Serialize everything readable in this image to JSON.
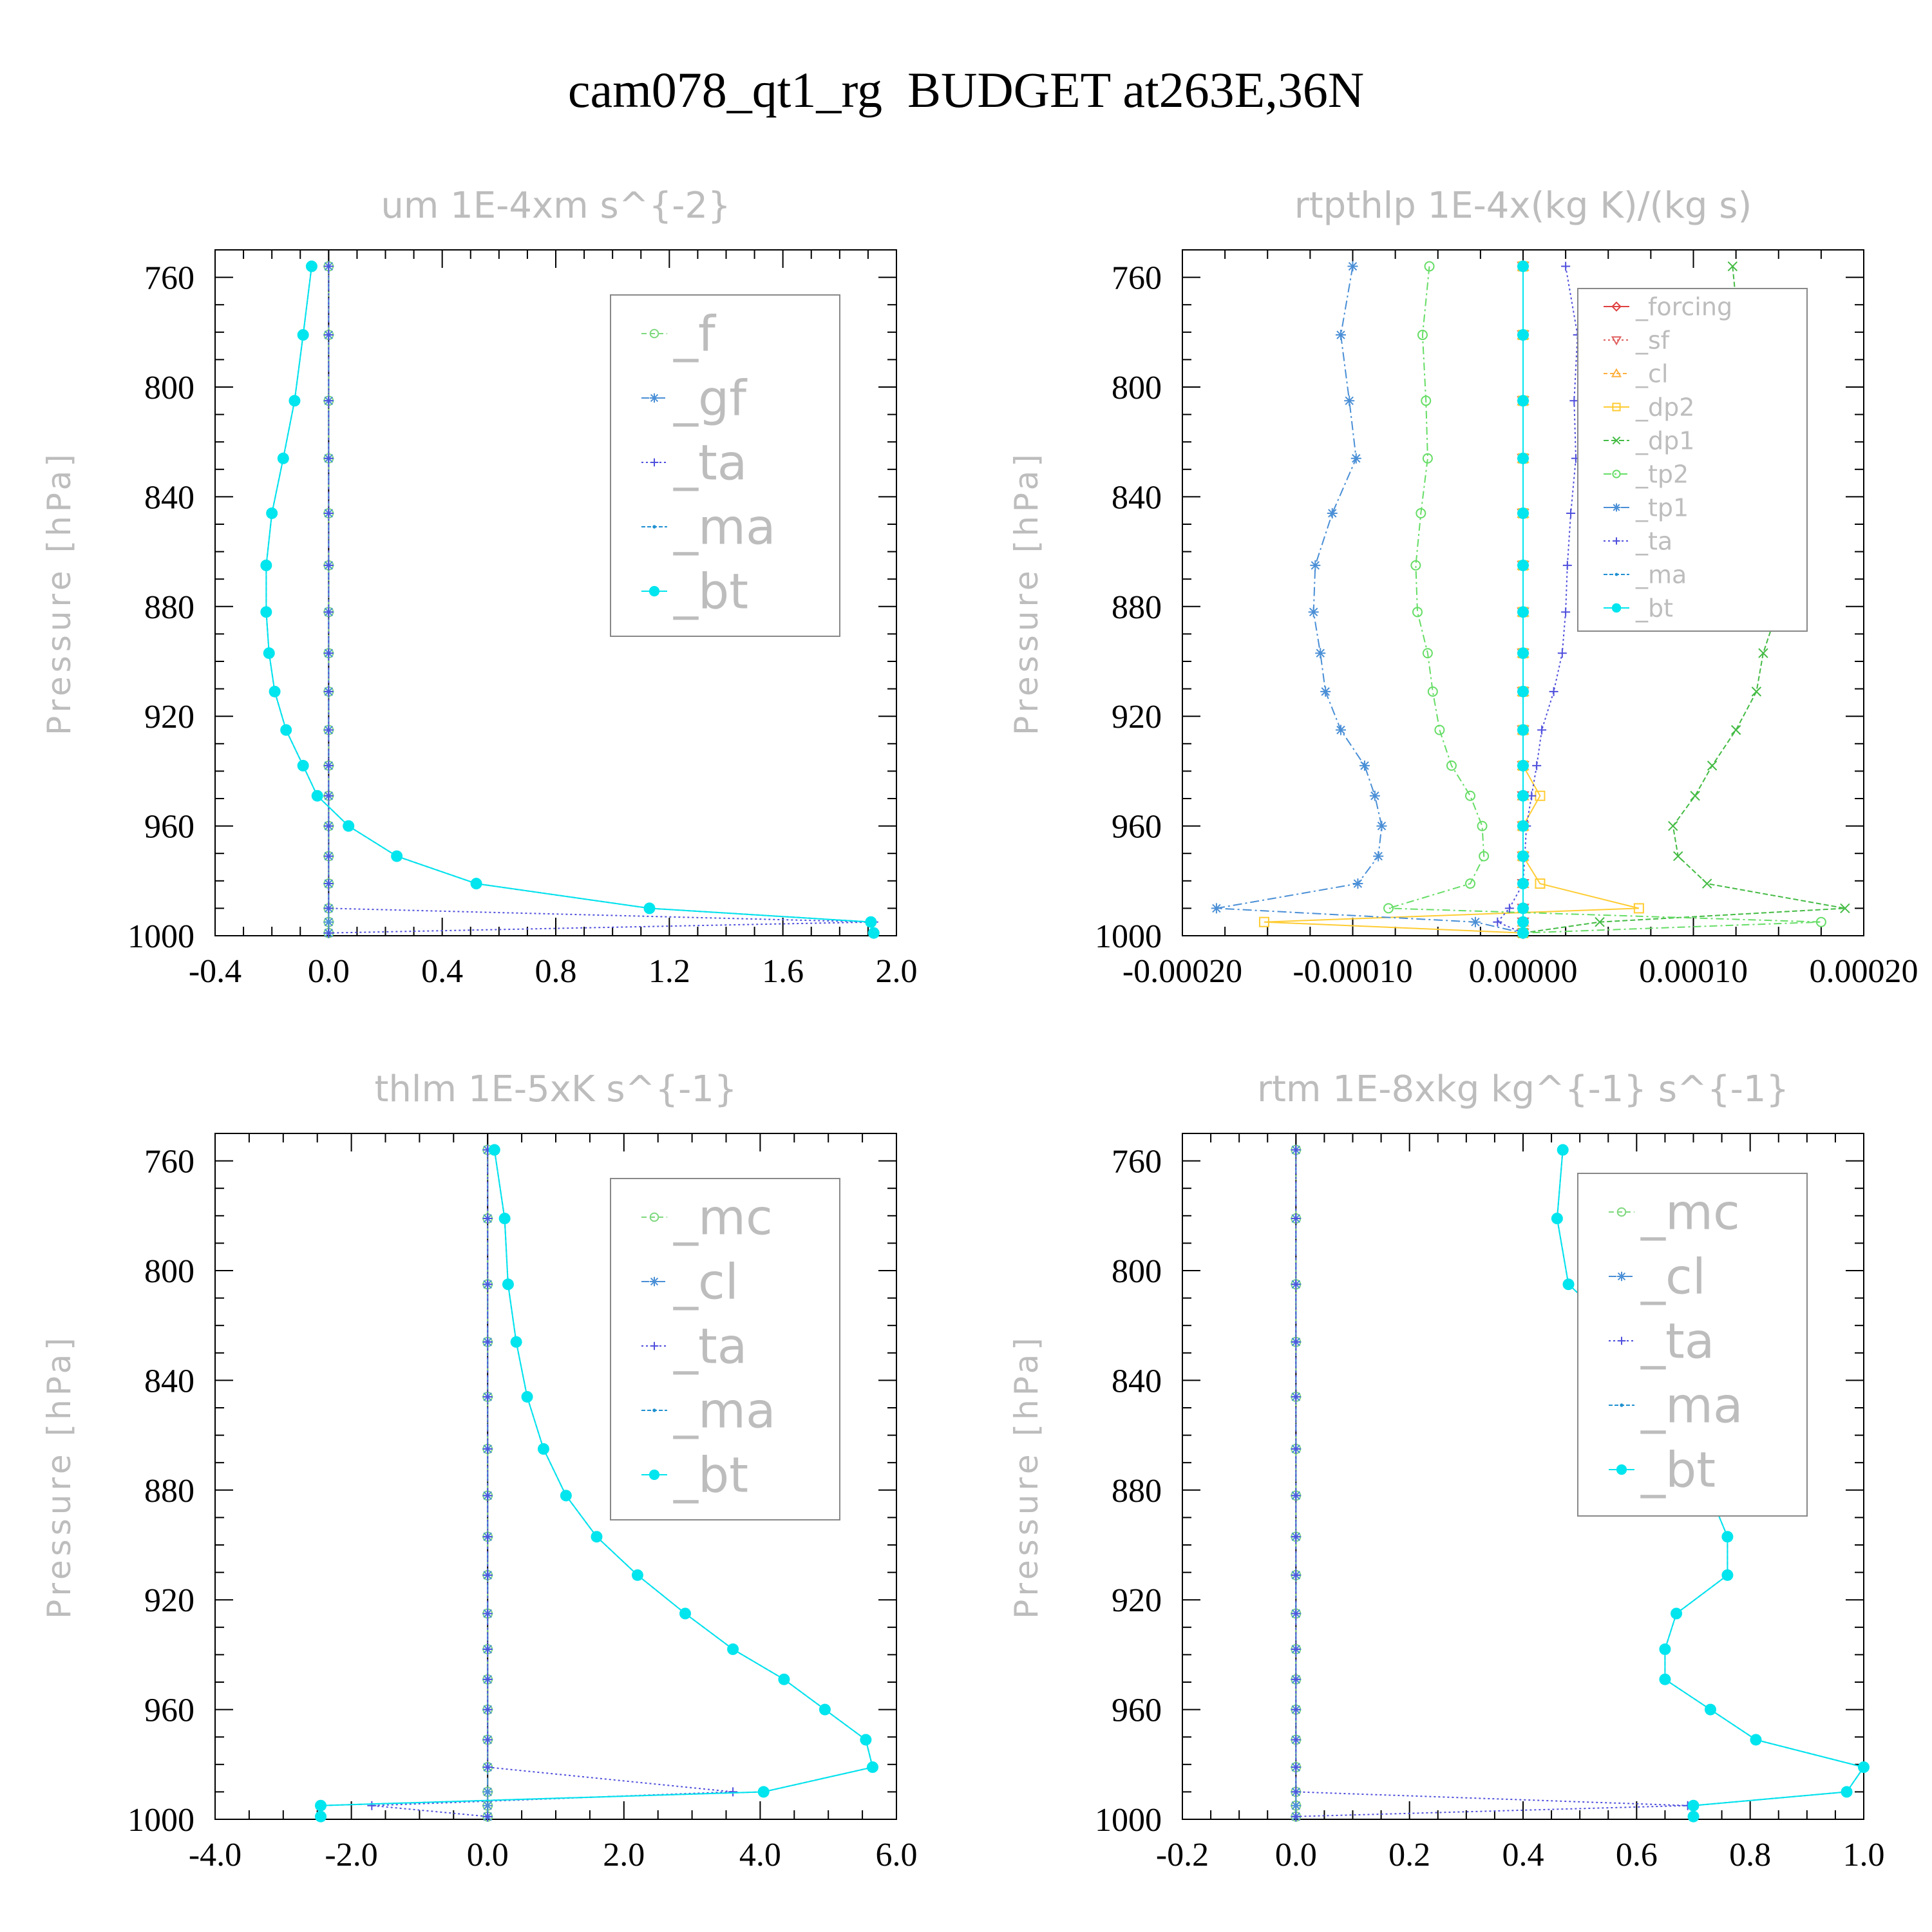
{
  "title": "cam078_qt1_rg  BUDGET at263E,36N",
  "chart_data": [
    {
      "type": "line",
      "title": "um   1E-4xm s^{-2}",
      "ylabel": "Pressure [hPa]",
      "xlabel": "",
      "xlim": [
        -0.4,
        2.0
      ],
      "ylim": [
        1000,
        750
      ],
      "x_ticks": [
        "-0.4",
        "0.0",
        "0.4",
        "0.8",
        "1.2",
        "1.6",
        "2.0"
      ],
      "y_ticks": [
        "760",
        "800",
        "840",
        "880",
        "920",
        "960",
        "1000"
      ],
      "legend": "top-right",
      "pressure": [
        756,
        781,
        805,
        826,
        846,
        865,
        882,
        897,
        911,
        925,
        938,
        949,
        960,
        971,
        981,
        990,
        995,
        999
      ],
      "series": [
        {
          "name": "_f",
          "color": "#7ed87e",
          "marker": "circle",
          "dash": "8,5",
          "values": [
            0,
            0,
            0,
            0,
            0,
            0,
            0,
            0,
            0,
            0,
            0,
            0,
            0,
            0,
            0,
            0,
            0,
            0
          ]
        },
        {
          "name": "_gf",
          "color": "#4a8fd6",
          "marker": "star",
          "dash": "12,5,3,5",
          "values": [
            0,
            0,
            0,
            0,
            0,
            0,
            0,
            0,
            0,
            0,
            0,
            0,
            0,
            0,
            0,
            0,
            0,
            0
          ]
        },
        {
          "name": "_ta",
          "color": "#4f4fdd",
          "marker": "plus",
          "dash": "3,4",
          "values": [
            0,
            0,
            0,
            0,
            0,
            0,
            0,
            0,
            0,
            0,
            0,
            0,
            0,
            0,
            0,
            0,
            1.92,
            0
          ]
        },
        {
          "name": "_ma",
          "color": "#1e90d0",
          "marker": "dot",
          "dash": "6,3",
          "values": [
            -0.06,
            -0.09,
            -0.12,
            -0.16,
            -0.2,
            -0.22,
            -0.22,
            -0.21,
            -0.19,
            -0.15,
            -0.09,
            -0.04,
            0.07,
            0.24,
            0.52,
            1.13,
            1.91,
            1.92
          ]
        },
        {
          "name": "_bt",
          "color": "#00e5ee",
          "marker": "bigdot",
          "dash": "",
          "values": [
            -0.06,
            -0.09,
            -0.12,
            -0.16,
            -0.2,
            -0.22,
            -0.22,
            -0.21,
            -0.19,
            -0.15,
            -0.09,
            -0.04,
            0.07,
            0.24,
            0.52,
            1.13,
            1.91,
            1.92
          ]
        }
      ]
    },
    {
      "type": "line",
      "title": "rtpthlp   1E-4x(kg K)/(kg s)",
      "ylabel": "Pressure [hPa]",
      "xlabel": "",
      "xlim": [
        -0.0002,
        0.0002
      ],
      "ylim": [
        1000,
        750
      ],
      "x_ticks": [
        "-0.00020",
        "-0.00010",
        "0.00000",
        "0.00010",
        "0.00020"
      ],
      "y_ticks": [
        "760",
        "800",
        "840",
        "880",
        "920",
        "960",
        "1000"
      ],
      "legend": "top-right",
      "pressure": [
        756,
        781,
        805,
        826,
        846,
        865,
        882,
        897,
        911,
        925,
        938,
        949,
        960,
        971,
        981,
        990,
        995,
        999
      ],
      "series": [
        {
          "name": "_forcing",
          "color": "#e04040",
          "marker": "diamond",
          "dash": "",
          "values": [
            0,
            0,
            0,
            0,
            0,
            0,
            0,
            0,
            0,
            0,
            0,
            0,
            0,
            0,
            0,
            0,
            0,
            0
          ]
        },
        {
          "name": "_sf",
          "color": "#e06060",
          "marker": "triangle-down",
          "dash": "3,4",
          "values": [
            0,
            0,
            0,
            0,
            0,
            0,
            0,
            0,
            0,
            0,
            0,
            0,
            0,
            0,
            0,
            0,
            0,
            0
          ]
        },
        {
          "name": "_cl",
          "color": "#ffb040",
          "marker": "triangle",
          "dash": "6,4",
          "values": [
            0,
            0,
            0,
            0,
            0,
            0,
            0,
            0,
            0,
            0,
            0,
            0,
            0,
            0,
            0,
            0,
            0,
            0
          ]
        },
        {
          "name": "_dp2",
          "color": "#ffcc33",
          "marker": "square",
          "dash": "",
          "values": [
            0,
            0,
            0,
            0,
            0,
            0,
            0,
            0,
            0,
            0,
            0,
            1e-05,
            0,
            0,
            1e-05,
            6.8e-05,
            -0.000152,
            0
          ]
        },
        {
          "name": "_dp1",
          "color": "#44bb44",
          "marker": "x",
          "dash": "8,4",
          "values": [
            0.000123,
            0.000127,
            0.000121,
            0.000123,
            0.000143,
            0.000151,
            0.000149,
            0.000141,
            0.000137,
            0.000125,
            0.000111,
            0.000101,
            8.8e-05,
            9.1e-05,
            0.000108,
            0.000189,
            4.5e-05,
            0
          ]
        },
        {
          "name": "_tp2",
          "color": "#66dd66",
          "marker": "circle",
          "dash": "12,5,3,5",
          "values": [
            -5.5e-05,
            -5.9e-05,
            -5.7e-05,
            -5.6e-05,
            -6e-05,
            -6.3e-05,
            -6.2e-05,
            -5.6e-05,
            -5.3e-05,
            -4.9e-05,
            -4.2e-05,
            -3.1e-05,
            -2.4e-05,
            -2.3e-05,
            -3.1e-05,
            -7.9e-05,
            0.000175,
            0
          ]
        },
        {
          "name": "_tp1",
          "color": "#4a8fd6",
          "marker": "star",
          "dash": "14,5,3,5",
          "values": [
            -0.0001,
            -0.000107,
            -0.000102,
            -9.8e-05,
            -0.000112,
            -0.000122,
            -0.000123,
            -0.000119,
            -0.000116,
            -0.000107,
            -9.3e-05,
            -8.7e-05,
            -8.3e-05,
            -8.5e-05,
            -9.7e-05,
            -0.00018,
            -2.8e-05,
            0
          ]
        },
        {
          "name": "_ta",
          "color": "#4f4fdd",
          "marker": "plus",
          "dash": "3,4",
          "values": [
            2.5e-05,
            3.2e-05,
            3e-05,
            3.1e-05,
            2.8e-05,
            2.6e-05,
            2.5e-05,
            2.3e-05,
            1.8e-05,
            1.1e-05,
            8e-06,
            5e-06,
            2e-06,
            1e-06,
            0,
            -8e-06,
            -1.5e-05,
            0
          ]
        },
        {
          "name": "_ma",
          "color": "#1e90d0",
          "marker": "dot",
          "dash": "6,3",
          "values": [
            0,
            0,
            0,
            0,
            0,
            0,
            0,
            0,
            0,
            0,
            0,
            0,
            0,
            0,
            0,
            0,
            0,
            0
          ]
        },
        {
          "name": "_bt",
          "color": "#00e5ee",
          "marker": "bigdot",
          "dash": "",
          "values": [
            0,
            0,
            0,
            0,
            0,
            0,
            0,
            0,
            0,
            0,
            0,
            0,
            0,
            0,
            0,
            0,
            0,
            0
          ]
        }
      ]
    },
    {
      "type": "line",
      "title": "thlm   1E-5xK s^{-1}",
      "ylabel": "Pressure [hPa]",
      "xlabel": "",
      "xlim": [
        -4.0,
        6.0
      ],
      "ylim": [
        1000,
        750
      ],
      "x_ticks": [
        "-4.0",
        "-2.0",
        "0.0",
        "2.0",
        "4.0",
        "6.0"
      ],
      "y_ticks": [
        "760",
        "800",
        "840",
        "880",
        "920",
        "960",
        "1000"
      ],
      "legend": "top-right",
      "pressure": [
        756,
        781,
        805,
        826,
        846,
        865,
        882,
        897,
        911,
        925,
        938,
        949,
        960,
        971,
        981,
        990,
        995,
        999
      ],
      "series": [
        {
          "name": "_mc",
          "color": "#7ed87e",
          "marker": "circle",
          "dash": "8,5",
          "values": [
            0,
            0,
            0,
            0,
            0,
            0,
            0,
            0,
            0,
            0,
            0,
            0,
            0,
            0,
            0,
            0,
            0,
            0
          ]
        },
        {
          "name": "_cl",
          "color": "#4a8fd6",
          "marker": "star",
          "dash": "12,5,3,5",
          "values": [
            0,
            0,
            0,
            0,
            0,
            0,
            0,
            0,
            0,
            0,
            0,
            0,
            0,
            0,
            0,
            0,
            0,
            0
          ]
        },
        {
          "name": "_ta",
          "color": "#4f4fdd",
          "marker": "plus",
          "dash": "3,4",
          "values": [
            0,
            0,
            0,
            0,
            0,
            0,
            0,
            0,
            0,
            0,
            0,
            0,
            0,
            0,
            0,
            3.6,
            -1.7,
            0
          ]
        },
        {
          "name": "_ma",
          "color": "#1e90d0",
          "marker": "dot",
          "dash": "6,3",
          "values": [
            0.1,
            0.25,
            0.3,
            0.42,
            0.58,
            0.82,
            1.15,
            1.6,
            2.2,
            2.9,
            3.6,
            4.35,
            4.95,
            5.55,
            5.65,
            4.05,
            -2.45,
            -2.45
          ]
        },
        {
          "name": "_bt",
          "color": "#00e5ee",
          "marker": "bigdot",
          "dash": "",
          "values": [
            0.1,
            0.25,
            0.3,
            0.42,
            0.58,
            0.82,
            1.15,
            1.6,
            2.2,
            2.9,
            3.6,
            4.35,
            4.95,
            5.55,
            5.65,
            4.05,
            -2.45,
            -2.45
          ]
        }
      ]
    },
    {
      "type": "line",
      "title": "rtm   1E-8xkg kg^{-1} s^{-1}",
      "ylabel": "Pressure [hPa]",
      "xlabel": "",
      "xlim": [
        -0.2,
        1.0
      ],
      "ylim": [
        1000,
        750
      ],
      "x_ticks": [
        "-0.2",
        "0.0",
        "0.2",
        "0.4",
        "0.6",
        "0.8",
        "1.0"
      ],
      "y_ticks": [
        "760",
        "800",
        "840",
        "880",
        "920",
        "960",
        "1000"
      ],
      "legend": "top-right",
      "pressure": [
        756,
        781,
        805,
        826,
        846,
        865,
        882,
        897,
        911,
        925,
        938,
        949,
        960,
        971,
        981,
        990,
        995,
        999
      ],
      "series": [
        {
          "name": "_mc",
          "color": "#7ed87e",
          "marker": "circle",
          "dash": "8,5",
          "values": [
            0,
            0,
            0,
            0,
            0,
            0,
            0,
            0,
            0,
            0,
            0,
            0,
            0,
            0,
            0,
            0,
            0,
            0
          ]
        },
        {
          "name": "_cl",
          "color": "#4a8fd6",
          "marker": "star",
          "dash": "12,5,3,5",
          "values": [
            0,
            0,
            0,
            0,
            0,
            0,
            0,
            0,
            0,
            0,
            0,
            0,
            0,
            0,
            0,
            0,
            0,
            0
          ]
        },
        {
          "name": "_ta",
          "color": "#4f4fdd",
          "marker": "plus",
          "dash": "3,4",
          "values": [
            0,
            0,
            0,
            0,
            0,
            0,
            0,
            0,
            0,
            0,
            0,
            0,
            0,
            0,
            0,
            0,
            0.69,
            0
          ]
        },
        {
          "name": "_ma",
          "color": "#1e90d0",
          "marker": "dot",
          "dash": "6,3",
          "values": [
            0.47,
            0.46,
            0.48,
            0.59,
            0.69,
            0.74,
            0.73,
            0.76,
            0.76,
            0.67,
            0.65,
            0.65,
            0.73,
            0.81,
            1.0,
            0.97,
            0.7,
            0.7
          ]
        },
        {
          "name": "_bt",
          "color": "#00e5ee",
          "marker": "bigdot",
          "dash": "",
          "values": [
            0.47,
            0.46,
            0.48,
            0.59,
            0.69,
            0.74,
            0.73,
            0.76,
            0.76,
            0.67,
            0.65,
            0.65,
            0.73,
            0.81,
            1.0,
            0.97,
            0.7,
            0.7
          ]
        }
      ]
    }
  ]
}
